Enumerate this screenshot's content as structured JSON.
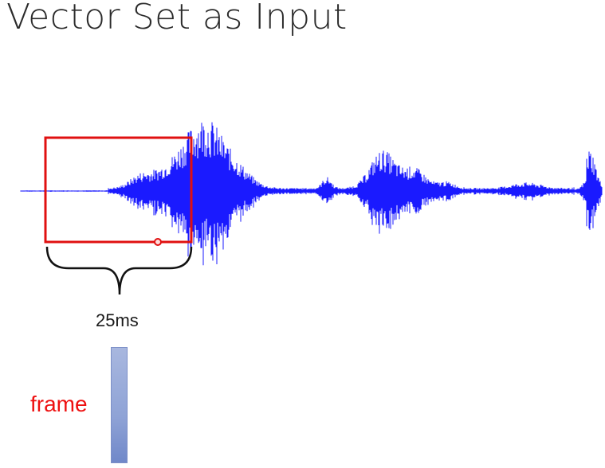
{
  "slide": {
    "title": "Vector Set as Input"
  },
  "annotations": {
    "window_duration": "25ms",
    "frame_label": "frame"
  },
  "colors": {
    "waveform": "#1a1aff",
    "window_box": "#e01010",
    "frame_label": "#ee1111",
    "frame_vector": "#8fa3d6",
    "brace": "#111111"
  }
}
